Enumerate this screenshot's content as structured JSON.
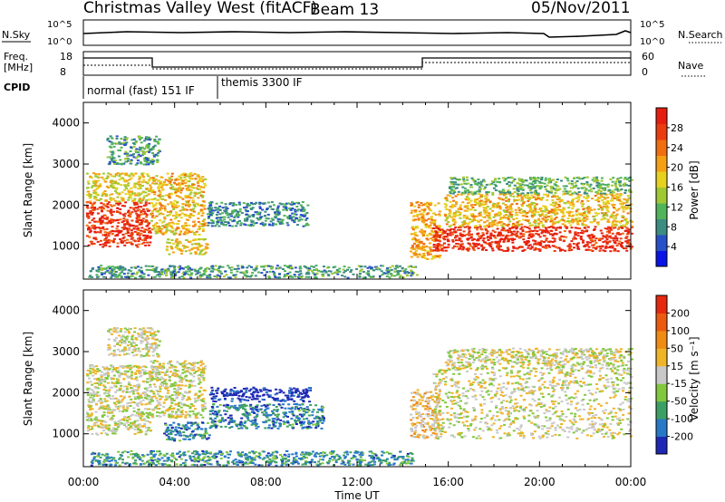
{
  "header": {
    "station": "Christmas Valley West (fitACF)",
    "beam": "Beam 13",
    "date": "05/Nov/2011"
  },
  "strips": {
    "nsky": {
      "label": "N.Sky",
      "ticks": [
        "10^5",
        "10^0"
      ]
    },
    "nsearch": {
      "label": "N.Search",
      "ticks": [
        "10^5",
        "10^0"
      ]
    },
    "freq": {
      "label1": "Freq.",
      "label2": "[MHz]",
      "ticks": [
        "18",
        "8"
      ]
    },
    "nave": {
      "label": "Nave",
      "ticks": [
        "60",
        "0"
      ]
    },
    "cpid": {
      "label": "CPID",
      "seg1": "normal (fast) 151 IF",
      "seg2": "themis 3300 IF"
    }
  },
  "time_ticks": [
    "00:00",
    "04:00",
    "08:00",
    "12:00",
    "16:00",
    "20:00",
    "00:00"
  ],
  "xlabel": "Time UT",
  "chart_data": [
    {
      "type": "heatmap",
      "name": "power-panel",
      "ylabel": "Slant Range [km]",
      "yticks": [
        "4000",
        "3000",
        "2000",
        "1000"
      ],
      "ylim": [
        200,
        4500
      ],
      "xlim_hours": [
        0,
        24
      ],
      "colorbar": {
        "label": "Power [dB]",
        "ticks": [
          "28",
          "24",
          "20",
          "16",
          "12",
          "8",
          "4"
        ],
        "colors": [
          "#0a14e6",
          "#2850c8",
          "#3c8c82",
          "#50b45a",
          "#a0c832",
          "#e6d21e",
          "#f5a014",
          "#f06e0f",
          "#eb3c0f",
          "#e61e0f"
        ]
      },
      "regions": [
        {
          "t": [
            0.1,
            2.9
          ],
          "r": [
            1000,
            2100
          ],
          "level": 0.9
        },
        {
          "t": [
            0.1,
            2.9
          ],
          "r": [
            2100,
            2800
          ],
          "level": 0.55
        },
        {
          "t": [
            1.0,
            3.3
          ],
          "r": [
            3000,
            3700
          ],
          "level": 0.3
        },
        {
          "t": [
            2.9,
            5.3
          ],
          "r": [
            1300,
            2800
          ],
          "level": 0.6
        },
        {
          "t": [
            3.6,
            5.4
          ],
          "r": [
            800,
            1200
          ],
          "level": 0.55
        },
        {
          "t": [
            5.4,
            9.8
          ],
          "r": [
            1500,
            2100
          ],
          "level": 0.25
        },
        {
          "t": [
            0.2,
            14.6
          ],
          "r": [
            250,
            550
          ],
          "level": 0.3
        },
        {
          "t": [
            14.3,
            15.6
          ],
          "r": [
            700,
            2100
          ],
          "level": 0.65
        },
        {
          "t": [
            15.3,
            24.0
          ],
          "r": [
            900,
            1500
          ],
          "level": 0.92
        },
        {
          "t": [
            15.8,
            24.0
          ],
          "r": [
            1500,
            2300
          ],
          "level": 0.6
        },
        {
          "t": [
            16.0,
            24.0
          ],
          "r": [
            2300,
            2700
          ],
          "level": 0.35
        }
      ]
    },
    {
      "type": "heatmap",
      "name": "velocity-panel",
      "ylabel": "Slant Range [km]",
      "yticks": [
        "4000",
        "3000",
        "2000",
        "1000"
      ],
      "ylim": [
        200,
        4500
      ],
      "xlim_hours": [
        0,
        24
      ],
      "colorbar": {
        "label": "Velocity [m s⁻¹]",
        "ticks": [
          "200",
          "100",
          "50",
          "15",
          "-15",
          "-50",
          "-100",
          "-200"
        ],
        "colors": [
          "#1e28b4",
          "#2878c8",
          "#3ca064",
          "#82c83c",
          "#c8c8c8",
          "#f0b428",
          "#f08c14",
          "#eb5a0f",
          "#e6280f"
        ]
      },
      "regions": [
        {
          "t": [
            0.1,
            2.9
          ],
          "r": [
            1000,
            2700
          ],
          "level": 0.5
        },
        {
          "t": [
            1.0,
            3.3
          ],
          "r": [
            2900,
            3600
          ],
          "level": 0.5
        },
        {
          "t": [
            2.9,
            5.3
          ],
          "r": [
            1400,
            2800
          ],
          "level": 0.5
        },
        {
          "t": [
            3.5,
            5.5
          ],
          "r": [
            850,
            1300
          ],
          "level": 0.22
        },
        {
          "t": [
            5.5,
            10.0
          ],
          "r": [
            1800,
            2150
          ],
          "level": 0.05
        },
        {
          "t": [
            5.5,
            10.5
          ],
          "r": [
            1150,
            1750
          ],
          "level": 0.2
        },
        {
          "t": [
            0.3,
            14.5
          ],
          "r": [
            250,
            600
          ],
          "level": 0.25
        },
        {
          "t": [
            14.3,
            15.6
          ],
          "r": [
            900,
            2100
          ],
          "level": 0.6
        },
        {
          "t": [
            15.3,
            24.0
          ],
          "r": [
            900,
            2600
          ],
          "level": 0.5
        },
        {
          "t": [
            15.8,
            24.0
          ],
          "r": [
            2600,
            3100
          ],
          "level": 0.5
        }
      ]
    }
  ]
}
